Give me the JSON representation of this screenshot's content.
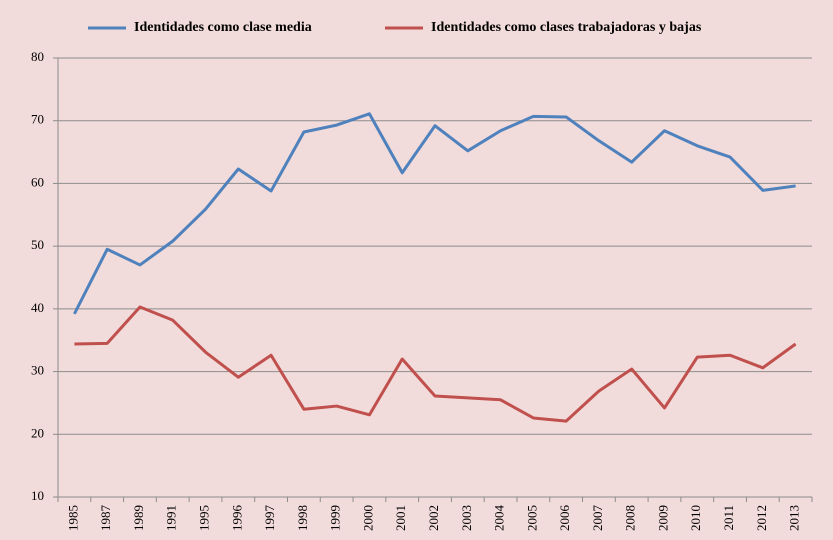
{
  "chart_data": {
    "type": "line",
    "categories": [
      "1985",
      "1987",
      "1989",
      "1991",
      "1995",
      "1996",
      "1997",
      "1998",
      "1999",
      "2000",
      "2001",
      "2002",
      "2003",
      "2004",
      "2005",
      "2006",
      "2007",
      "2008",
      "2009",
      "2010",
      "2011",
      "2012",
      "2013"
    ],
    "series": [
      {
        "name": "Identidades como clase media",
        "color": "#4f81bd",
        "values": [
          39.2,
          49.5,
          47.0,
          50.8,
          55.9,
          62.3,
          58.8,
          68.2,
          69.3,
          71.1,
          61.7,
          69.2,
          65.2,
          68.4,
          70.7,
          70.6,
          66.8,
          63.4,
          68.4,
          66.0,
          64.2,
          58.9,
          59.6
        ]
      },
      {
        "name": "Identidades como clases trabajadoras y bajas",
        "color": "#c0504d",
        "values": [
          34.4,
          34.5,
          40.3,
          38.2,
          33.1,
          29.1,
          32.6,
          24.0,
          24.5,
          23.1,
          32.0,
          26.1,
          25.8,
          25.5,
          22.6,
          22.1,
          26.9,
          30.4,
          24.2,
          32.3,
          32.6,
          30.6,
          34.4
        ]
      }
    ],
    "ylim": [
      10,
      80
    ],
    "yticks": [
      10,
      20,
      30,
      40,
      50,
      60,
      70,
      80
    ],
    "grid": true,
    "legend": "top"
  }
}
